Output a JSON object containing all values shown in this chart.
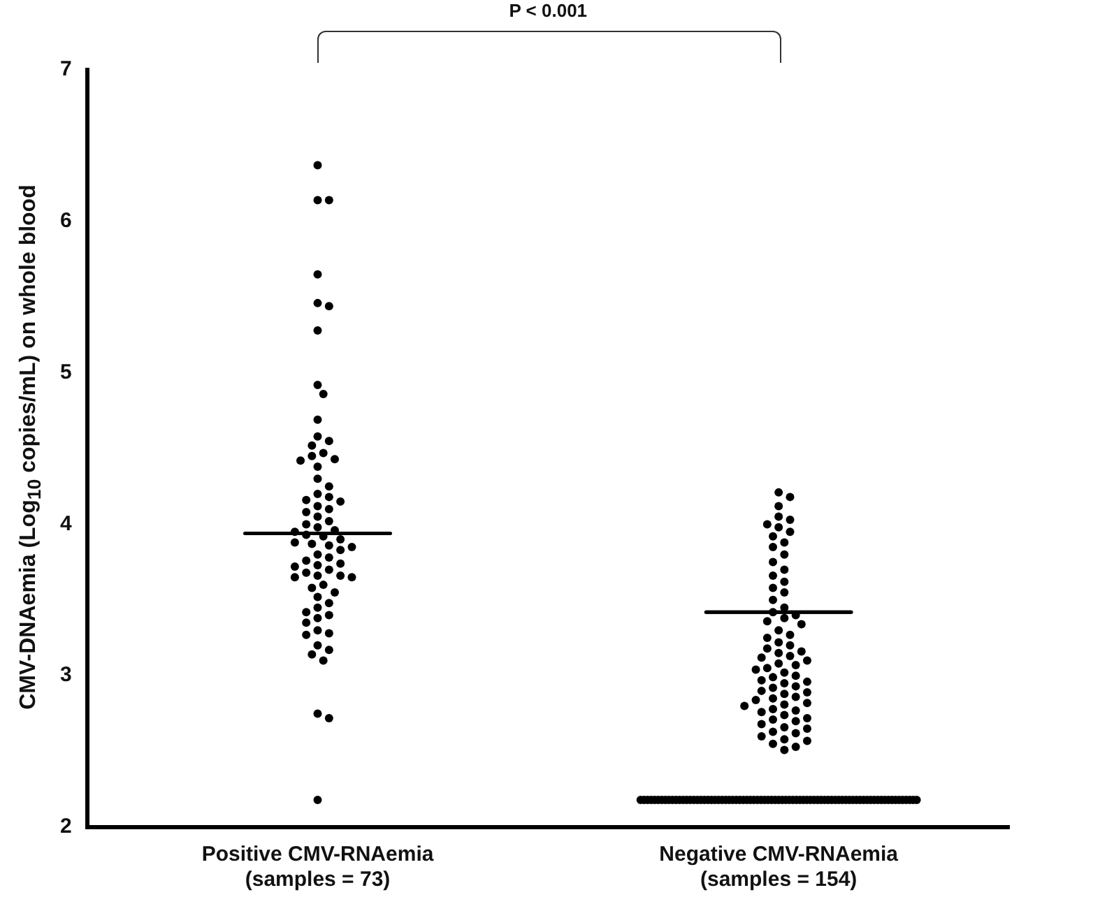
{
  "chart_data": {
    "type": "scatter",
    "categories": [
      "Positive CMV-RNAemia\n(samples = 73)",
      "Negative CMV-RNAemia\n(samples = 154)"
    ],
    "ylabel": "CMV-DNAemia (Log$_{10}$ copies/mL) on whole blood",
    "ylim": [
      2,
      7
    ],
    "yticks": [
      2,
      3,
      4,
      5,
      6,
      7
    ],
    "grid": false,
    "legend": false,
    "marker": "circle",
    "annotations": [
      "P < 0.001"
    ],
    "series": [
      {
        "color": "#000000",
        "x": [
          "Positive CMV-RNAemia\n(samples = 73)",
          "Positive CMV-RNAemia\n(samples = 73)",
          "Positive CMV-RNAemia\n(samples = 73)",
          "Positive CMV-RNAemia\n(samples = 73)",
          "Positive CMV-RNAemia\n(samples = 73)",
          "Positive CMV-RNAemia\n(samples = 73)",
          "Positive CMV-RNAemia\n(samples = 73)",
          "Positive CMV-RNAemia\n(samples = 73)",
          "Positive CMV-RNAemia\n(samples = 73)",
          "Positive CMV-RNAemia\n(samples = 73)",
          "Positive CMV-RNAemia\n(samples = 73)",
          "Positive CMV-RNAemia\n(samples = 73)",
          "Positive CMV-RNAemia\n(samples = 73)",
          "Positive CMV-RNAemia\n(samples = 73)",
          "Positive CMV-RNAemia\n(samples = 73)",
          "Positive CMV-RNAemia\n(samples = 73)",
          "Positive CMV-RNAemia\n(samples = 73)",
          "Positive CMV-RNAemia\n(samples = 73)",
          "Positive CMV-RNAemia\n(samples = 73)",
          "Positive CMV-RNAemia\n(samples = 73)",
          "Positive CMV-RNAemia\n(samples = 73)",
          "Positive CMV-RNAemia\n(samples = 73)",
          "Positive CMV-RNAemia\n(samples = 73)",
          "Positive CMV-RNAemia\n(samples = 73)",
          "Positive CMV-RNAemia\n(samples = 73)",
          "Positive CMV-RNAemia\n(samples = 73)",
          "Positive CMV-RNAemia\n(samples = 73)",
          "Positive CMV-RNAemia\n(samples = 73)",
          "Positive CMV-RNAemia\n(samples = 73)",
          "Positive CMV-RNAemia\n(samples = 73)",
          "Positive CMV-RNAemia\n(samples = 73)",
          "Positive CMV-RNAemia\n(samples = 73)",
          "Positive CMV-RNAemia\n(samples = 73)",
          "Positive CMV-RNAemia\n(samples = 73)",
          "Positive CMV-RNAemia\n(samples = 73)",
          "Positive CMV-RNAemia\n(samples = 73)",
          "Positive CMV-RNAemia\n(samples = 73)",
          "Positive CMV-RNAemia\n(samples = 73)",
          "Positive CMV-RNAemia\n(samples = 73)",
          "Positive CMV-RNAemia\n(samples = 73)",
          "Positive CMV-RNAemia\n(samples = 73)",
          "Positive CMV-RNAemia\n(samples = 73)",
          "Positive CMV-RNAemia\n(samples = 73)",
          "Positive CMV-RNAemia\n(samples = 73)",
          "Positive CMV-RNAemia\n(samples = 73)",
          "Positive CMV-RNAemia\n(samples = 73)",
          "Positive CMV-RNAemia\n(samples = 73)",
          "Positive CMV-RNAemia\n(samples = 73)",
          "Positive CMV-RNAemia\n(samples = 73)",
          "Positive CMV-RNAemia\n(samples = 73)",
          "Positive CMV-RNAemia\n(samples = 73)",
          "Positive CMV-RNAemia\n(samples = 73)",
          "Positive CMV-RNAemia\n(samples = 73)",
          "Positive CMV-RNAemia\n(samples = 73)",
          "Positive CMV-RNAemia\n(samples = 73)",
          "Positive CMV-RNAemia\n(samples = 73)",
          "Positive CMV-RNAemia\n(samples = 73)",
          "Positive CMV-RNAemia\n(samples = 73)",
          "Positive CMV-RNAemia\n(samples = 73)",
          "Positive CMV-RNAemia\n(samples = 73)",
          "Positive CMV-RNAemia\n(samples = 73)",
          "Positive CMV-RNAemia\n(samples = 73)",
          "Positive CMV-RNAemia\n(samples = 73)",
          "Positive CMV-RNAemia\n(samples = 73)",
          "Positive CMV-RNAemia\n(samples = 73)",
          "Positive CMV-RNAemia\n(samples = 73)",
          "Positive CMV-RNAemia\n(samples = 73)",
          "Positive CMV-RNAemia\n(samples = 73)",
          "Positive CMV-RNAemia\n(samples = 73)",
          "Positive CMV-RNAemia\n(samples = 73)",
          "Positive CMV-RNAemia\n(samples = 73)",
          "Positive CMV-RNAemia\n(samples = 73)",
          "Positive CMV-RNAemia\n(samples = 73)"
        ],
        "values": [
          6.37,
          6.14,
          6.14,
          5.65,
          5.46,
          5.44,
          5.28,
          4.92,
          4.86,
          4.69,
          4.58,
          4.55,
          4.52,
          4.47,
          4.45,
          4.43,
          4.42,
          4.38,
          4.3,
          4.25,
          4.2,
          4.18,
          4.16,
          4.15,
          4.12,
          4.1,
          4.08,
          4.05,
          4.02,
          4.0,
          3.98,
          3.96,
          3.95,
          3.93,
          3.92,
          3.9,
          3.88,
          3.87,
          3.86,
          3.85,
          3.83,
          3.8,
          3.78,
          3.76,
          3.74,
          3.73,
          3.72,
          3.7,
          3.68,
          3.66,
          3.66,
          3.65,
          3.65,
          3.6,
          3.58,
          3.55,
          3.52,
          3.48,
          3.45,
          3.42,
          3.4,
          3.38,
          3.35,
          3.3,
          3.28,
          3.27,
          3.2,
          3.17,
          3.14,
          3.1,
          2.75,
          2.72,
          2.18
        ]
      },
      {
        "color": "#000000",
        "x": [
          "Negative CMV-RNAemia\n(samples = 154)",
          "Negative CMV-RNAemia\n(samples = 154)",
          "Negative CMV-RNAemia\n(samples = 154)",
          "Negative CMV-RNAemia\n(samples = 154)",
          "Negative CMV-RNAemia\n(samples = 154)",
          "Negative CMV-RNAemia\n(samples = 154)",
          "Negative CMV-RNAemia\n(samples = 154)",
          "Negative CMV-RNAemia\n(samples = 154)",
          "Negative CMV-RNAemia\n(samples = 154)",
          "Negative CMV-RNAemia\n(samples = 154)",
          "Negative CMV-RNAemia\n(samples = 154)",
          "Negative CMV-RNAemia\n(samples = 154)",
          "Negative CMV-RNAemia\n(samples = 154)",
          "Negative CMV-RNAemia\n(samples = 154)",
          "Negative CMV-RNAemia\n(samples = 154)",
          "Negative CMV-RNAemia\n(samples = 154)",
          "Negative CMV-RNAemia\n(samples = 154)",
          "Negative CMV-RNAemia\n(samples = 154)",
          "Negative CMV-RNAemia\n(samples = 154)",
          "Negative CMV-RNAemia\n(samples = 154)",
          "Negative CMV-RNAemia\n(samples = 154)",
          "Negative CMV-RNAemia\n(samples = 154)",
          "Negative CMV-RNAemia\n(samples = 154)",
          "Negative CMV-RNAemia\n(samples = 154)",
          "Negative CMV-RNAemia\n(samples = 154)",
          "Negative CMV-RNAemia\n(samples = 154)",
          "Negative CMV-RNAemia\n(samples = 154)",
          "Negative CMV-RNAemia\n(samples = 154)",
          "Negative CMV-RNAemia\n(samples = 154)",
          "Negative CMV-RNAemia\n(samples = 154)",
          "Negative CMV-RNAemia\n(samples = 154)",
          "Negative CMV-RNAemia\n(samples = 154)",
          "Negative CMV-RNAemia\n(samples = 154)",
          "Negative CMV-RNAemia\n(samples = 154)",
          "Negative CMV-RNAemia\n(samples = 154)",
          "Negative CMV-RNAemia\n(samples = 154)",
          "Negative CMV-RNAemia\n(samples = 154)",
          "Negative CMV-RNAemia\n(samples = 154)",
          "Negative CMV-RNAemia\n(samples = 154)",
          "Negative CMV-RNAemia\n(samples = 154)",
          "Negative CMV-RNAemia\n(samples = 154)",
          "Negative CMV-RNAemia\n(samples = 154)",
          "Negative CMV-RNAemia\n(samples = 154)",
          "Negative CMV-RNAemia\n(samples = 154)",
          "Negative CMV-RNAemia\n(samples = 154)",
          "Negative CMV-RNAemia\n(samples = 154)",
          "Negative CMV-RNAemia\n(samples = 154)",
          "Negative CMV-RNAemia\n(samples = 154)",
          "Negative CMV-RNAemia\n(samples = 154)",
          "Negative CMV-RNAemia\n(samples = 154)",
          "Negative CMV-RNAemia\n(samples = 154)",
          "Negative CMV-RNAemia\n(samples = 154)",
          "Negative CMV-RNAemia\n(samples = 154)",
          "Negative CMV-RNAemia\n(samples = 154)",
          "Negative CMV-RNAemia\n(samples = 154)",
          "Negative CMV-RNAemia\n(samples = 154)",
          "Negative CMV-RNAemia\n(samples = 154)",
          "Negative CMV-RNAemia\n(samples = 154)",
          "Negative CMV-RNAemia\n(samples = 154)",
          "Negative CMV-RNAemia\n(samples = 154)",
          "Negative CMV-RNAemia\n(samples = 154)",
          "Negative CMV-RNAemia\n(samples = 154)",
          "Negative CMV-RNAemia\n(samples = 154)",
          "Negative CMV-RNAemia\n(samples = 154)",
          "Negative CMV-RNAemia\n(samples = 154)",
          "Negative CMV-RNAemia\n(samples = 154)",
          "Negative CMV-RNAemia\n(samples = 154)",
          "Negative CMV-RNAemia\n(samples = 154)",
          "Negative CMV-RNAemia\n(samples = 154)",
          "Negative CMV-RNAemia\n(samples = 154)",
          "Negative CMV-RNAemia\n(samples = 154)",
          "Negative CMV-RNAemia\n(samples = 154)",
          "Negative CMV-RNAemia\n(samples = 154)",
          "Negative CMV-RNAemia\n(samples = 154)",
          "Negative CMV-RNAemia\n(samples = 154)",
          "Negative CMV-RNAemia\n(samples = 154)",
          "Negative CMV-RNAemia\n(samples = 154)",
          "Negative CMV-RNAemia\n(samples = 154)",
          "Negative CMV-RNAemia\n(samples = 154)",
          "Negative CMV-RNAemia\n(samples = 154)",
          "Negative CMV-RNAemia\n(samples = 154)",
          "Negative CMV-RNAemia\n(samples = 154)",
          "Negative CMV-RNAemia\n(samples = 154)",
          "Negative CMV-RNAemia\n(samples = 154)",
          "Negative CMV-RNAemia\n(samples = 154)",
          "Negative CMV-RNAemia\n(samples = 154)",
          "Negative CMV-RNAemia\n(samples = 154)",
          "Negative CMV-RNAemia\n(samples = 154)",
          "Negative CMV-RNAemia\n(samples = 154)",
          "Negative CMV-RNAemia\n(samples = 154)",
          "Negative CMV-RNAemia\n(samples = 154)",
          "Negative CMV-RNAemia\n(samples = 154)",
          "Negative CMV-RNAemia\n(samples = 154)",
          "Negative CMV-RNAemia\n(samples = 154)",
          "Negative CMV-RNAemia\n(samples = 154)",
          "Negative CMV-RNAemia\n(samples = 154)",
          "Negative CMV-RNAemia\n(samples = 154)",
          "Negative CMV-RNAemia\n(samples = 154)",
          "Negative CMV-RNAemia\n(samples = 154)",
          "Negative CMV-RNAemia\n(samples = 154)",
          "Negative CMV-RNAemia\n(samples = 154)",
          "Negative CMV-RNAemia\n(samples = 154)",
          "Negative CMV-RNAemia\n(samples = 154)",
          "Negative CMV-RNAemia\n(samples = 154)",
          "Negative CMV-RNAemia\n(samples = 154)",
          "Negative CMV-RNAemia\n(samples = 154)",
          "Negative CMV-RNAemia\n(samples = 154)",
          "Negative CMV-RNAemia\n(samples = 154)",
          "Negative CMV-RNAemia\n(samples = 154)",
          "Negative CMV-RNAemia\n(samples = 154)",
          "Negative CMV-RNAemia\n(samples = 154)",
          "Negative CMV-RNAemia\n(samples = 154)",
          "Negative CMV-RNAemia\n(samples = 154)",
          "Negative CMV-RNAemia\n(samples = 154)",
          "Negative CMV-RNAemia\n(samples = 154)",
          "Negative CMV-RNAemia\n(samples = 154)",
          "Negative CMV-RNAemia\n(samples = 154)",
          "Negative CMV-RNAemia\n(samples = 154)",
          "Negative CMV-RNAemia\n(samples = 154)",
          "Negative CMV-RNAemia\n(samples = 154)",
          "Negative CMV-RNAemia\n(samples = 154)",
          "Negative CMV-RNAemia\n(samples = 154)",
          "Negative CMV-RNAemia\n(samples = 154)",
          "Negative CMV-RNAemia\n(samples = 154)",
          "Negative CMV-RNAemia\n(samples = 154)",
          "Negative CMV-RNAemia\n(samples = 154)",
          "Negative CMV-RNAemia\n(samples = 154)",
          "Negative CMV-RNAemia\n(samples = 154)",
          "Negative CMV-RNAemia\n(samples = 154)",
          "Negative CMV-RNAemia\n(samples = 154)",
          "Negative CMV-RNAemia\n(samples = 154)",
          "Negative CMV-RNAemia\n(samples = 154)",
          "Negative CMV-RNAemia\n(samples = 154)",
          "Negative CMV-RNAemia\n(samples = 154)",
          "Negative CMV-RNAemia\n(samples = 154)",
          "Negative CMV-RNAemia\n(samples = 154)",
          "Negative CMV-RNAemia\n(samples = 154)",
          "Negative CMV-RNAemia\n(samples = 154)",
          "Negative CMV-RNAemia\n(samples = 154)",
          "Negative CMV-RNAemia\n(samples = 154)",
          "Negative CMV-RNAemia\n(samples = 154)",
          "Negative CMV-RNAemia\n(samples = 154)",
          "Negative CMV-RNAemia\n(samples = 154)",
          "Negative CMV-RNAemia\n(samples = 154)",
          "Negative CMV-RNAemia\n(samples = 154)",
          "Negative CMV-RNAemia\n(samples = 154)",
          "Negative CMV-RNAemia\n(samples = 154)",
          "Negative CMV-RNAemia\n(samples = 154)",
          "Negative CMV-RNAemia\n(samples = 154)",
          "Negative CMV-RNAemia\n(samples = 154)",
          "Negative CMV-RNAemia\n(samples = 154)",
          "Negative CMV-RNAemia\n(samples = 154)",
          "Negative CMV-RNAemia\n(samples = 154)",
          "Negative CMV-RNAemia\n(samples = 154)"
        ],
        "values": [
          4.21,
          4.18,
          4.12,
          4.05,
          4.03,
          4.0,
          3.98,
          3.95,
          3.92,
          3.88,
          3.85,
          3.8,
          3.75,
          3.7,
          3.66,
          3.62,
          3.58,
          3.55,
          3.5,
          3.45,
          3.42,
          3.4,
          3.38,
          3.36,
          3.34,
          3.3,
          3.27,
          3.25,
          3.22,
          3.2,
          3.18,
          3.16,
          3.15,
          3.13,
          3.12,
          3.1,
          3.08,
          3.07,
          3.05,
          3.04,
          3.02,
          3.0,
          2.99,
          2.97,
          2.96,
          2.95,
          2.93,
          2.92,
          2.9,
          2.89,
          2.88,
          2.86,
          2.85,
          2.84,
          2.82,
          2.81,
          2.8,
          2.78,
          2.77,
          2.76,
          2.74,
          2.72,
          2.71,
          2.7,
          2.68,
          2.66,
          2.65,
          2.63,
          2.62,
          2.6,
          2.58,
          2.57,
          2.55,
          2.53,
          2.51,
          2.18,
          2.18,
          2.18,
          2.18,
          2.18,
          2.18,
          2.18,
          2.18,
          2.18,
          2.18,
          2.18,
          2.18,
          2.18,
          2.18,
          2.18,
          2.18,
          2.18,
          2.18,
          2.18,
          2.18,
          2.18,
          2.18,
          2.18,
          2.18,
          2.18,
          2.18,
          2.18,
          2.18,
          2.18,
          2.18,
          2.18,
          2.18,
          2.18,
          2.18,
          2.18,
          2.18,
          2.18,
          2.18,
          2.18,
          2.18,
          2.18,
          2.18,
          2.18,
          2.18,
          2.18,
          2.18,
          2.18,
          2.18,
          2.18,
          2.18,
          2.18,
          2.18,
          2.18,
          2.18,
          2.18,
          2.18,
          2.18,
          2.18,
          2.18,
          2.18,
          2.18,
          2.18,
          2.18,
          2.18,
          2.18,
          2.18,
          2.18,
          2.18,
          2.18,
          2.18,
          2.18,
          2.18,
          2.18,
          2.18,
          2.18,
          2.18,
          2.18,
          2.18,
          2.18
        ]
      },
      {
        "color": "#000000",
        "type": "box",
        "boxes": [
          {
            "low": 3.94,
            "q1": 3.94,
            "median": 3.94,
            "q3": 3.94,
            "high": 3.94
          },
          {
            "low": 3.42,
            "q1": 3.42,
            "median": 3.42,
            "q3": 3.42,
            "high": 3.42
          }
        ]
      }
    ]
  }
}
